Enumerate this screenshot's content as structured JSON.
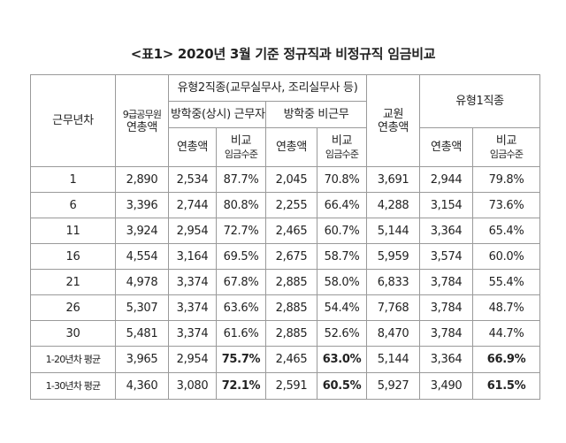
{
  "title": "<표1> 2020년 3월 기준 정규직과 비정규직 임금비교",
  "headers": {
    "years": "근무년차",
    "civil_line1": "9급공무원",
    "civil_line2": "연총액",
    "type2": "유형2직종(교무실무사, 조리실무사 등)",
    "type2_a": "방학중(상시) 근무자",
    "type2_b": "방학중 비근무",
    "teacher_line1": "교원",
    "teacher_line2": "연총액",
    "type1": "유형1직종",
    "total": "연총액",
    "compare_line1": "비교",
    "compare_line2": "임금수준"
  },
  "rows": [
    {
      "year": "1",
      "civil": "2,890",
      "a_total": "2,534",
      "a_cmp": "87.7%",
      "b_total": "2,045",
      "b_cmp": "70.8%",
      "teacher": "3,691",
      "t1_total": "2,944",
      "t1_cmp": "79.8%"
    },
    {
      "year": "6",
      "civil": "3,396",
      "a_total": "2,744",
      "a_cmp": "80.8%",
      "b_total": "2,255",
      "b_cmp": "66.4%",
      "teacher": "4,288",
      "t1_total": "3,154",
      "t1_cmp": "73.6%"
    },
    {
      "year": "11",
      "civil": "3,924",
      "a_total": "2,954",
      "a_cmp": "72.7%",
      "b_total": "2,465",
      "b_cmp": "60.7%",
      "teacher": "5,144",
      "t1_total": "3,364",
      "t1_cmp": "65.4%"
    },
    {
      "year": "16",
      "civil": "4,554",
      "a_total": "3,164",
      "a_cmp": "69.5%",
      "b_total": "2,675",
      "b_cmp": "58.7%",
      "teacher": "5,959",
      "t1_total": "3,574",
      "t1_cmp": "60.0%"
    },
    {
      "year": "21",
      "civil": "4,978",
      "a_total": "3,374",
      "a_cmp": "67.8%",
      "b_total": "2,885",
      "b_cmp": "58.0%",
      "teacher": "6,833",
      "t1_total": "3,784",
      "t1_cmp": "55.4%"
    },
    {
      "year": "26",
      "civil": "5,307",
      "a_total": "3,374",
      "a_cmp": "63.6%",
      "b_total": "2,885",
      "b_cmp": "54.4%",
      "teacher": "7,768",
      "t1_total": "3,784",
      "t1_cmp": "48.7%"
    },
    {
      "year": "30",
      "civil": "5,481",
      "a_total": "3,374",
      "a_cmp": "61.6%",
      "b_total": "2,885",
      "b_cmp": "52.6%",
      "teacher": "8,470",
      "t1_total": "3,784",
      "t1_cmp": "44.7%"
    }
  ],
  "averages": [
    {
      "year": "1-20년차 평균",
      "civil": "3,965",
      "a_total": "2,954",
      "a_cmp": "75.7%",
      "b_total": "2,465",
      "b_cmp": "63.0%",
      "teacher": "5,144",
      "t1_total": "3,364",
      "t1_cmp": "66.9%"
    },
    {
      "year": "1-30년차 평균",
      "civil": "4,360",
      "a_total": "3,080",
      "a_cmp": "72.1%",
      "b_total": "2,591",
      "b_cmp": "60.5%",
      "teacher": "5,927",
      "t1_total": "3,490",
      "t1_cmp": "61.5%"
    }
  ]
}
